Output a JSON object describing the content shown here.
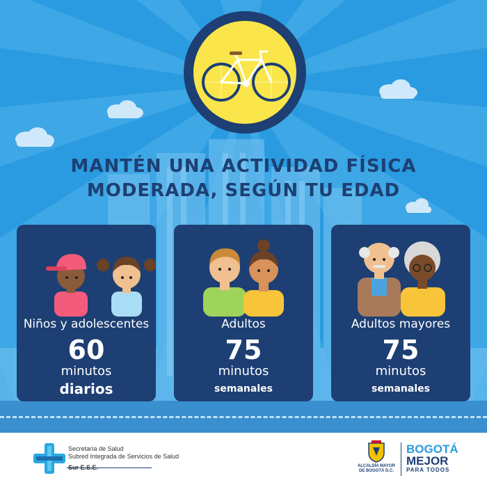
{
  "headline": {
    "line1": "MANTÉN UNA ACTIVIDAD FÍSICA",
    "line2": "MODERADA, SEGÚN TU EDAD"
  },
  "cards": [
    {
      "group": "Niños y adolescentes",
      "minutes": "60",
      "unit": "minutos",
      "frequency": "diarios"
    },
    {
      "group": "Adultos",
      "minutes": "75",
      "unit": "minutos",
      "frequency": "semanales"
    },
    {
      "group": "Adultos mayores",
      "minutes": "75",
      "unit": "minutos",
      "frequency": "semanales"
    }
  ],
  "footer": {
    "secretaria_line1": "Secretaría de Salud",
    "secretaria_line2": "Subred Integrada de Servicios de Salud",
    "secretaria_line3": "Sur E.S.E.",
    "alcaldia_line1": "ALCALDÍA MAYOR",
    "alcaldia_line2": "DE BOGOTÁ D.C.",
    "bogota_line1": "BOGOTÁ",
    "bogota_line2": "MEJOR",
    "bogota_line3": "PARA TODOS"
  },
  "colors": {
    "background": "#2a9be0",
    "navy": "#1d3f73",
    "sun_yellow": "#fae64a",
    "white": "#ffffff"
  },
  "icons": [
    "bicycle-icon",
    "children-icon",
    "adults-icon",
    "seniors-icon",
    "health-cross-logo",
    "bogota-shield-icon"
  ]
}
